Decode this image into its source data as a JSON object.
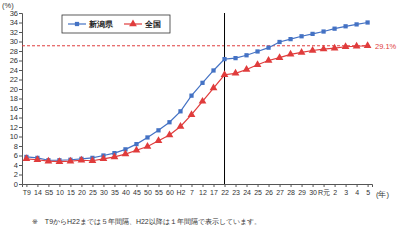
{
  "chart_data": {
    "type": "line",
    "y_label": "(%)",
    "x_label": "(年)",
    "note": "※　T9からH22までは５年間隔、H22以降は１年間隔で表示しています。",
    "categories": [
      "T9",
      "14",
      "S5",
      "10",
      "15",
      "20",
      "25",
      "30",
      "35",
      "40",
      "45",
      "50",
      "55",
      "60",
      "H2",
      "7",
      "12",
      "17",
      "22",
      "23",
      "24",
      "25",
      "26",
      "27",
      "28",
      "29",
      "30",
      "R元",
      "2",
      "3",
      "4",
      "5"
    ],
    "series": [
      {
        "name": "新潟県",
        "color": "#4472c4",
        "marker": "square",
        "values": [
          5.7,
          5.5,
          5.0,
          5.0,
          5.1,
          5.3,
          5.5,
          6.0,
          6.5,
          7.3,
          8.4,
          9.8,
          11.3,
          13.0,
          15.3,
          18.6,
          21.3,
          23.9,
          26.3,
          26.5,
          27.1,
          27.9,
          28.7,
          29.9,
          30.5,
          31.1,
          31.6,
          32.1,
          32.7,
          33.2,
          33.6,
          34.0
        ]
      },
      {
        "name": "全国",
        "color": "#e03c3c",
        "marker": "triangle",
        "values": [
          5.3,
          5.1,
          4.8,
          4.7,
          4.8,
          5.0,
          4.9,
          5.3,
          5.7,
          6.3,
          7.1,
          7.9,
          9.1,
          10.3,
          12.1,
          14.6,
          17.4,
          20.2,
          23.0,
          23.3,
          24.1,
          25.1,
          26.0,
          26.6,
          27.3,
          27.7,
          28.1,
          28.4,
          28.6,
          28.9,
          29.0,
          29.1
        ]
      }
    ],
    "annotations": [
      {
        "type": "hline",
        "value": 29.1,
        "label": "29.1%",
        "color": "#e03c3c",
        "line_style": "dashed"
      },
      {
        "type": "vline",
        "x": "22",
        "color": "#000000",
        "line_style": "solid"
      }
    ],
    "ylim": [
      0,
      36
    ],
    "yticks": [
      0,
      2,
      4,
      6,
      8,
      10,
      12,
      14,
      16,
      18,
      20,
      22,
      24,
      26,
      28,
      30,
      32,
      34,
      36
    ],
    "grid": false,
    "legend": "upper left"
  }
}
